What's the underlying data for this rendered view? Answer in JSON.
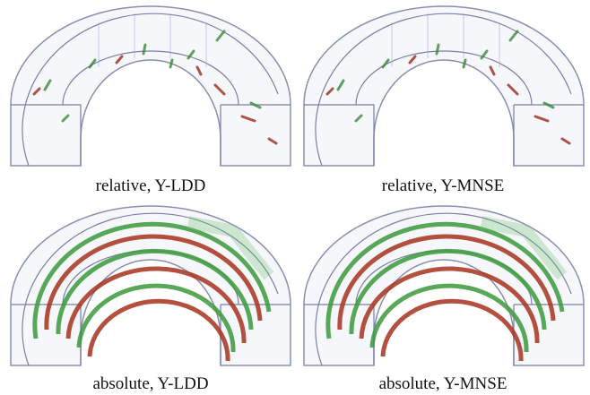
{
  "figures": [
    {
      "caption": "relative, Y-LDD"
    },
    {
      "caption": "relative, Y-MNSE"
    },
    {
      "caption": "absolute, Y-LDD"
    },
    {
      "caption": "absolute, Y-MNSE"
    }
  ]
}
